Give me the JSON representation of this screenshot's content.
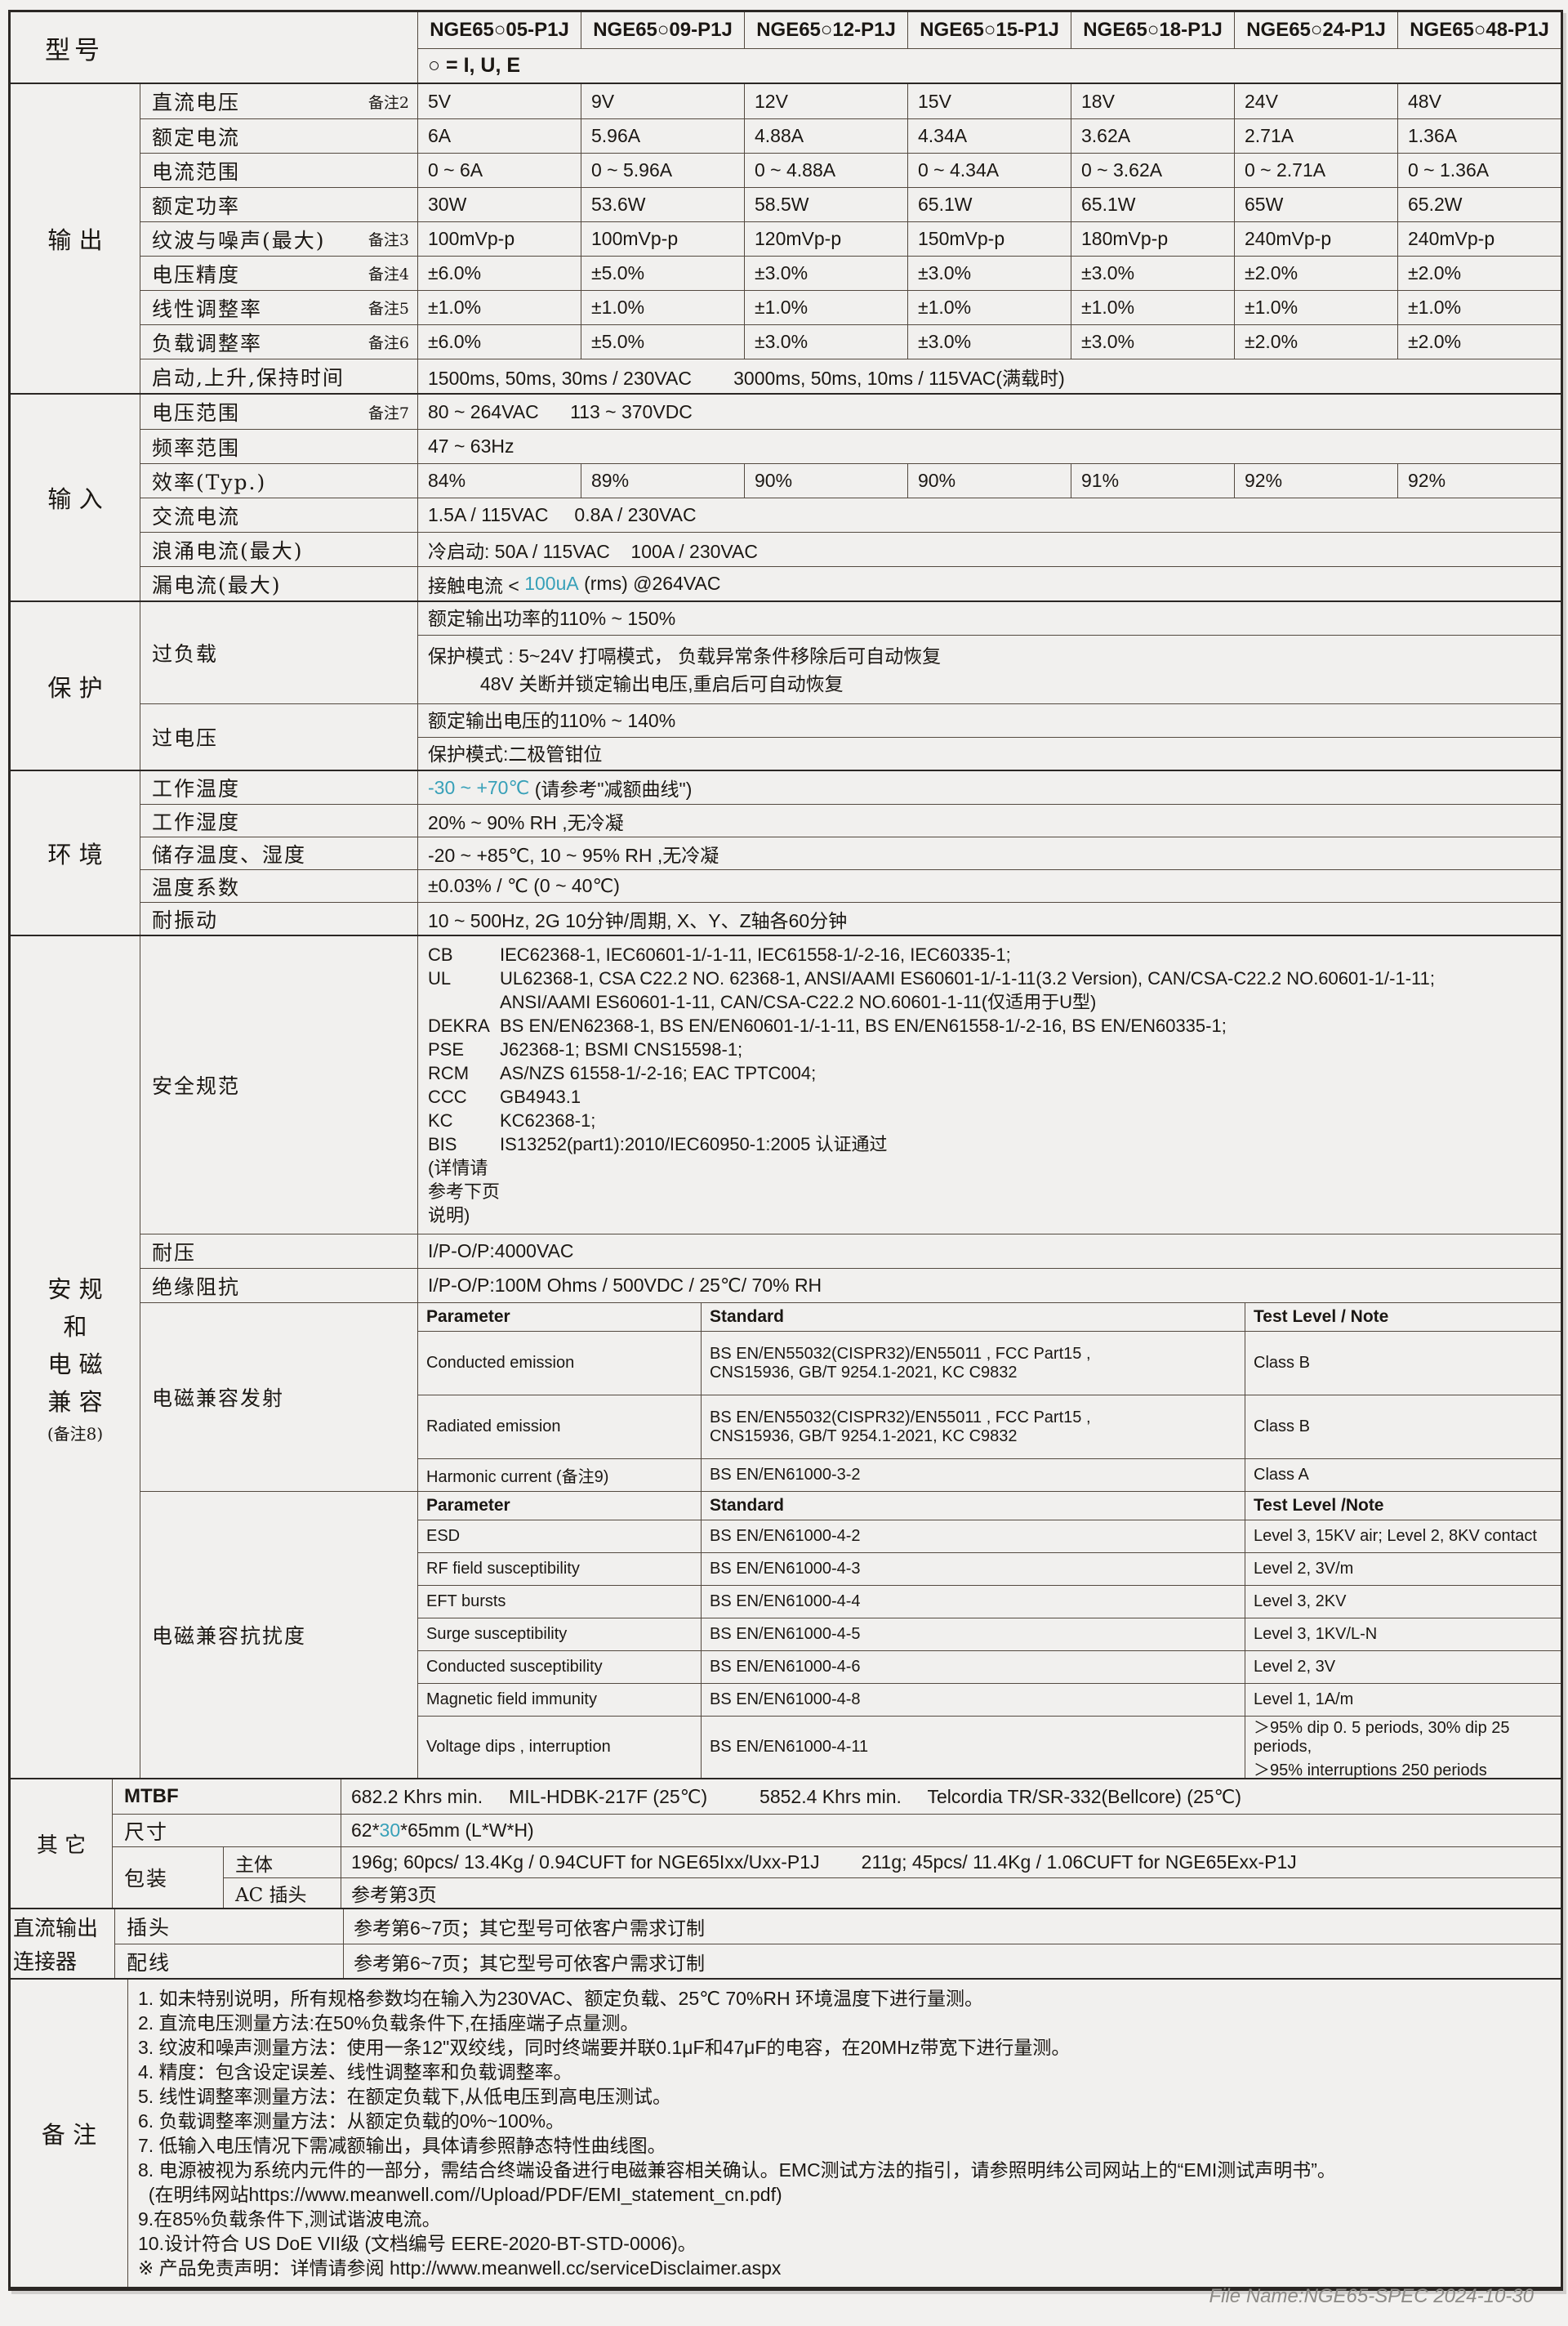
{
  "colors": {
    "teal": "#37a0b8"
  },
  "header": {
    "model_label": "型号",
    "models": [
      "NGE65○05-P1J",
      "NGE65○09-P1J",
      "NGE65○12-P1J",
      "NGE65○15-P1J",
      "NGE65○18-P1J",
      "NGE65○24-P1J",
      "NGE65○48-P1J"
    ],
    "circle_note": "○ = I, U, E"
  },
  "sections": [
    {
      "id": "output",
      "group": [
        "输 出"
      ],
      "rows": [
        {
          "t": "cols",
          "label": "直流电压",
          "note": "备注2",
          "values": [
            "5V",
            "9V",
            "12V",
            "15V",
            "18V",
            "24V",
            "48V"
          ]
        },
        {
          "t": "cols",
          "label": "额定电流",
          "values": [
            "6A",
            "5.96A",
            "4.88A",
            "4.34A",
            "3.62A",
            "2.71A",
            "1.36A"
          ]
        },
        {
          "t": "cols",
          "label": "电流范围",
          "values": [
            "0 ~ 6A",
            "0 ~ 5.96A",
            "0 ~ 4.88A",
            "0 ~ 4.34A",
            "0 ~ 3.62A",
            "0 ~ 2.71A",
            "0 ~ 1.36A"
          ]
        },
        {
          "t": "cols",
          "label": "额定功率",
          "values": [
            "30W",
            "53.6W",
            "58.5W",
            "65.1W",
            "65.1W",
            "65W",
            "65.2W"
          ]
        },
        {
          "t": "cols",
          "label": "纹波与噪声(最大)",
          "note": "备注3",
          "values": [
            "100mVp-p",
            "100mVp-p",
            "120mVp-p",
            "150mVp-p",
            "180mVp-p",
            "240mVp-p",
            "240mVp-p"
          ]
        },
        {
          "t": "cols",
          "label": "电压精度",
          "note": "备注4",
          "values": [
            "±6.0%",
            "±5.0%",
            "±3.0%",
            "±3.0%",
            "±3.0%",
            "±2.0%",
            "±2.0%"
          ]
        },
        {
          "t": "cols",
          "label": "线性调整率",
          "note": "备注5",
          "values": [
            "±1.0%",
            "±1.0%",
            "±1.0%",
            "±1.0%",
            "±1.0%",
            "±1.0%",
            "±1.0%"
          ]
        },
        {
          "t": "cols",
          "label": "负载调整率",
          "note": "备注6",
          "values": [
            "±6.0%",
            "±5.0%",
            "±3.0%",
            "±3.0%",
            "±3.0%",
            "±2.0%",
            "±2.0%"
          ]
        },
        {
          "t": "span",
          "label": "启动,上升,保持时间",
          "text": "1500ms, 50ms, 30ms / 230VAC        3000ms, 50ms, 10ms / 115VAC(满载时)"
        }
      ]
    },
    {
      "id": "input",
      "group": [
        "输 入"
      ],
      "rows": [
        {
          "t": "span",
          "label": "电压范围",
          "note": "备注7",
          "text": "80 ~ 264VAC      113 ~ 370VDC"
        },
        {
          "t": "span",
          "label": "频率范围",
          "text": "47 ~ 63Hz"
        },
        {
          "t": "cols",
          "label": "效率(Typ.)",
          "values": [
            "84%",
            "89%",
            "90%",
            "90%",
            "91%",
            "92%",
            "92%"
          ]
        },
        {
          "t": "span",
          "label": "交流电流",
          "text": "1.5A / 115VAC     0.8A / 230VAC"
        },
        {
          "t": "span",
          "label": "浪涌电流(最大)",
          "text": "冷启动: 50A / 115VAC    100A / 230VAC"
        },
        {
          "t": "parts",
          "label": "漏电流(最大)",
          "parts": [
            {
              "text": "接触电流 < "
            },
            {
              "text": "100uA",
              "teal": true
            },
            {
              "text": " (rms) @264VAC"
            }
          ]
        }
      ]
    },
    {
      "id": "protection",
      "group": [
        "保 护"
      ],
      "rows": [
        {
          "t": "stack",
          "label": "过负载",
          "subs": [
            {
              "lines": [
                "额定输出功率的110% ~ 150%"
              ]
            },
            {
              "lines": [
                "保护模式 : 5~24V 打嗝模式， 负载异常条件移除后可自动恢复",
                "          48V 关断并锁定输出电压,重启后可自动恢复"
              ]
            }
          ]
        },
        {
          "t": "stack",
          "label": "过电压",
          "subs": [
            {
              "lines": [
                "额定输出电压的110% ~ 140%"
              ]
            },
            {
              "lines": [
                "保护模式:二极管钳位"
              ]
            }
          ]
        }
      ]
    },
    {
      "id": "environment",
      "group": [
        "环 境"
      ],
      "rows": [
        {
          "t": "parts",
          "label": "工作温度",
          "parts": [
            {
              "text": "-30 ~ +70℃",
              "teal": true
            },
            {
              "text": " (请参考\"减额曲线\")"
            }
          ]
        },
        {
          "t": "span",
          "label": "工作湿度",
          "text": "20% ~ 90% RH ,无冷凝"
        },
        {
          "t": "span",
          "label": "储存温度、湿度",
          "text": "-20 ~ +85℃, 10 ~ 95% RH ,无冷凝"
        },
        {
          "t": "span",
          "label": "温度系数",
          "text": "±0.03% / ℃ (0 ~ 40℃)"
        },
        {
          "t": "span",
          "label": "耐振动",
          "text": "10 ~ 500Hz, 2G 10分钟/周期, X、Y、Z轴各60分钟"
        }
      ]
    },
    {
      "id": "safety-emc",
      "group": [
        "安 规",
        "和",
        "电 磁",
        "兼 容",
        "(备注8)"
      ],
      "rows": [
        {
          "t": "keyval",
          "label": "安全规范",
          "lines": [
            {
              "k": "CB",
              "v": "IEC62368-1, IEC60601-1/-1-11, IEC61558-1/-2-16, IEC60335-1;"
            },
            {
              "k": "UL",
              "v": "UL62368-1, CSA C22.2 NO. 62368-1, ANSI/AAMI ES60601-1/-1-11(3.2 Version), CAN/CSA-C22.2 NO.60601-1/-1-11;"
            },
            {
              "k": "",
              "v": "ANSI/AAMI ES60601-1-11, CAN/CSA-C22.2 NO.60601-1-11(仅适用于U型)"
            },
            {
              "k": "DEKRA",
              "v": "BS EN/EN62368-1, BS EN/EN60601-1/-1-11, BS EN/EN61558-1/-2-16, BS EN/EN60335-1;"
            },
            {
              "k": "PSE",
              "v": "J62368-1; BSMI CNS15598-1;"
            },
            {
              "k": "RCM",
              "v": "AS/NZS 61558-1/-2-16; EAC TPTC004;"
            },
            {
              "k": "CCC",
              "v": "GB4943.1"
            },
            {
              "k": "KC",
              "v": "KC62368-1;"
            },
            {
              "k": "BIS",
              "v": "IS13252(part1):2010/IEC60950-1:2005 认证通过"
            },
            {
              "k": "(详情请参考下页说明)",
              "v": ""
            }
          ]
        },
        {
          "t": "span",
          "label": "耐压",
          "text": "I/P-O/P:4000VAC"
        },
        {
          "t": "span",
          "label": "绝缘阻抗",
          "text": "I/P-O/P:100M Ohms / 500VDC / 25℃/ 70% RH"
        },
        {
          "t": "emc",
          "label": "电磁兼容发射",
          "headers": [
            "Parameter",
            "Standard",
            "Test Level / Note"
          ],
          "trows": [
            {
              "cells": [
                "Conducted emission",
                "BS EN/EN55032(CISPR32)/EN55011 , FCC Part15 ,\nCNS15936, GB/T 9254.1-2021, KC C9832",
                "Class B"
              ]
            },
            {
              "cells": [
                "Radiated emission",
                "BS EN/EN55032(CISPR32)/EN55011 , FCC Part15 ,\nCNS15936, GB/T 9254.1-2021, KC C9832",
                "Class B"
              ]
            },
            {
              "cells": [
                "Harmonic current (备注9)",
                "BS EN/EN61000-3-2",
                "Class A"
              ]
            }
          ]
        },
        {
          "t": "emc",
          "label": "电磁兼容抗扰度",
          "headers": [
            "Parameter",
            "Standard",
            "Test Level /Note"
          ],
          "trows": [
            {
              "cells": [
                "ESD",
                "BS EN/EN61000-4-2",
                "Level 3, 15KV air; Level 2, 8KV contact"
              ]
            },
            {
              "cells": [
                "RF field susceptibility",
                "BS EN/EN61000-4-3",
                "Level 2, 3V/m"
              ]
            },
            {
              "cells": [
                "EFT bursts",
                "BS EN/EN61000-4-4",
                "Level 3, 2KV"
              ]
            },
            {
              "cells": [
                "Surge susceptibility",
                "BS EN/EN61000-4-5",
                "Level 3, 1KV/L-N"
              ]
            },
            {
              "cells": [
                "Conducted susceptibility",
                "BS EN/EN61000-4-6",
                "Level 2, 3V"
              ]
            },
            {
              "cells": [
                "Magnetic field immunity",
                "BS EN/EN61000-4-8",
                "Level 1, 1A/m"
              ]
            },
            {
              "cells": [
                "Voltage dips , interruption",
                "BS EN/EN61000-4-11",
                "＞95% dip 0. 5 periods, 30% dip 25 periods,\n＞95% interruptions 250 periods"
              ]
            }
          ]
        }
      ]
    },
    {
      "id": "others",
      "group": [
        "其 它"
      ],
      "narrow": true,
      "rows": [
        {
          "t": "span",
          "label": "MTBF",
          "latin": true,
          "text": "682.2 Khrs min.     MIL-HDBK-217F (25℃)          5852.4 Khrs min.     Telcordia TR/SR-332(Bellcore) (25℃)"
        },
        {
          "t": "parts",
          "label": "尺寸",
          "parts": [
            {
              "text": "62*"
            },
            {
              "text": "30",
              "teal": true
            },
            {
              "text": "*65mm (L*W*H)"
            }
          ]
        },
        {
          "t": "pack",
          "label": "包装",
          "subs": [
            {
              "sublabel": "主体",
              "text": "196g; 60pcs/ 13.4Kg / 0.94CUFT for NGE65Ixx/Uxx-P1J        211g; 45pcs/ 11.4Kg / 1.06CUFT for NGE65Exx-P1J"
            },
            {
              "sublabel": "AC 插头",
              "text": "参考第3页"
            }
          ]
        }
      ]
    },
    {
      "id": "dc-connector",
      "group": [
        "直流输出",
        "连接器"
      ],
      "narrow": true,
      "rows": [
        {
          "t": "span",
          "label": "插头",
          "text": "参考第6~7页；其它型号可依客户需求订制"
        },
        {
          "t": "span",
          "label": "配线",
          "text": "参考第6~7页；其它型号可依客户需求订制"
        }
      ]
    }
  ],
  "notes": {
    "group": "备 注",
    "lines": [
      "1. 如未特别说明，所有规格参数均在输入为230VAC、额定负载、25℃ 70%RH 环境温度下进行量测。",
      "2. 直流电压测量方法:在50%负载条件下,在插座端子点量测。",
      "3. 纹波和噪声测量方法：使用一条12\"双绞线，同时终端要并联0.1μF和47μF的电容，在20MHz带宽下进行量测。",
      "4. 精度：包含设定误差、线性调整率和负载调整率。",
      "5. 线性调整率测量方法：在额定负载下,从低电压到高电压测试。",
      "6. 负载调整率测量方法：从额定负载的0%~100%。",
      "7. 低输入电压情况下需减额输出，具体请参照静态特性曲线图。",
      "8. 电源被视为系统内元件的一部分，需结合终端设备进行电磁兼容相关确认。EMC测试方法的指引，请参照明纬公司网站上的“EMI测试声明书”。",
      "  (在明纬网站https://www.meanwell.com//Upload/PDF/EMI_statement_cn.pdf)",
      "9.在85%负载条件下,测试谐波电流。",
      "10.设计符合 US DoE VII级 (文档编号 EERE-2020-BT-STD-0006)。",
      "※ 产品免责声明：详情请参阅 http://www.meanwell.cc/serviceDisclaimer.aspx"
    ]
  },
  "footer": {
    "text": "File Name:NGE65-SPEC  2024-10-30"
  }
}
